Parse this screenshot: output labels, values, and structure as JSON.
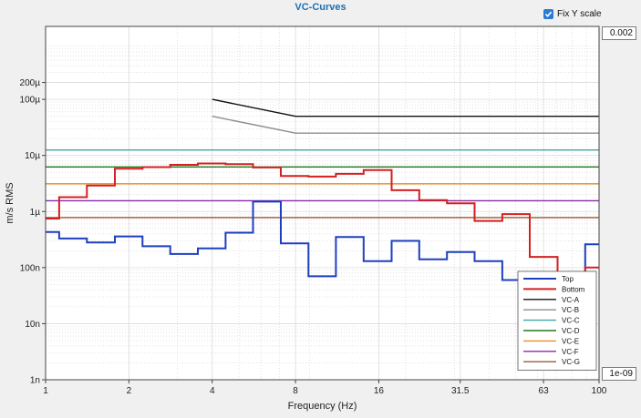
{
  "chart_data": {
    "type": "line",
    "title": "VC-Curves",
    "xlabel": "Frequency (Hz)",
    "ylabel": "m/s RMS",
    "x_scale": "log",
    "y_scale": "log",
    "xlim": [
      1,
      100
    ],
    "ylim": [
      1e-09,
      0.002
    ],
    "x_ticks": [
      1,
      2,
      4,
      8,
      16,
      31.5,
      63,
      100
    ],
    "x_tick_labels": [
      "1",
      "2",
      "4",
      "8",
      "16",
      "31.5",
      "63",
      "100"
    ],
    "y_ticks": [
      1e-09,
      1e-08,
      1e-07,
      1e-06,
      1e-05,
      0.0001,
      0.0002
    ],
    "y_tick_labels": [
      "1n",
      "10n",
      "100n",
      "1µ",
      "10µ",
      "100µ",
      "200µ"
    ],
    "grid": true,
    "legend_position": "bottom-right",
    "series": [
      {
        "name": "Top",
        "color": "#1f3fbf",
        "width": 2,
        "step": true,
        "x": [
          1,
          1.12,
          1.41,
          1.78,
          2.24,
          2.82,
          3.55,
          4.47,
          5.62,
          7.08,
          8.91,
          11.2,
          14.1,
          17.8,
          22.4,
          28.2,
          35.5,
          44.7,
          56.2,
          70.8,
          89.1,
          100
        ],
        "y": [
          4.3e-07,
          3.3e-07,
          2.8e-07,
          3.6e-07,
          2.4e-07,
          1.75e-07,
          2.2e-07,
          4.2e-07,
          1.5e-06,
          2.7e-07,
          7e-08,
          3.5e-07,
          1.3e-07,
          3e-07,
          1.4e-07,
          1.9e-07,
          1.3e-07,
          6e-08,
          3.8e-08,
          1e-08,
          2.6e-07,
          2.6e-07
        ]
      },
      {
        "name": "Bottom",
        "color": "#d42020",
        "width": 2,
        "step": true,
        "x": [
          1,
          1.12,
          1.41,
          1.78,
          2.24,
          2.82,
          3.55,
          4.47,
          5.62,
          7.08,
          8.91,
          11.2,
          14.1,
          17.8,
          22.4,
          28.2,
          35.5,
          44.7,
          56.2,
          70.8,
          89.1,
          100
        ],
        "y": [
          7.5e-07,
          1.8e-06,
          2.9e-06,
          5.8e-06,
          6.2e-06,
          6.8e-06,
          7.2e-06,
          7e-06,
          6.1e-06,
          4.3e-06,
          4.2e-06,
          4.7e-06,
          5.5e-06,
          2.4e-06,
          1.6e-06,
          1.4e-06,
          6.8e-07,
          9e-07,
          1.55e-07,
          5.5e-08,
          1e-07,
          1e-07
        ]
      },
      {
        "name": "VC-A",
        "color": "#111111",
        "width": 1.4,
        "step": false,
        "x": [
          4,
          8,
          100
        ],
        "y": [
          0.0001,
          5e-05,
          5e-05
        ]
      },
      {
        "name": "VC-B",
        "color": "#8c8c8c",
        "width": 1.4,
        "step": false,
        "x": [
          4,
          8,
          100
        ],
        "y": [
          5e-05,
          2.5e-05,
          2.5e-05
        ]
      },
      {
        "name": "VC-C",
        "color": "#3aa8a0",
        "width": 1.4,
        "step": false,
        "x": [
          1,
          100
        ],
        "y": [
          1.25e-05,
          1.25e-05
        ]
      },
      {
        "name": "VC-D",
        "color": "#1e7a1e",
        "width": 1.4,
        "step": false,
        "x": [
          1,
          100
        ],
        "y": [
          6.25e-06,
          6.25e-06
        ]
      },
      {
        "name": "VC-E",
        "color": "#f08c1e",
        "width": 1.4,
        "step": false,
        "x": [
          1,
          100
        ],
        "y": [
          3.12e-06,
          3.12e-06
        ]
      },
      {
        "name": "VC-F",
        "color": "#8a2aa8",
        "width": 1.4,
        "step": false,
        "x": [
          1,
          100
        ],
        "y": [
          1.56e-06,
          1.56e-06
        ]
      },
      {
        "name": "VC-G",
        "color": "#9a5a32",
        "width": 1.4,
        "step": false,
        "x": [
          1,
          100
        ],
        "y": [
          7.8e-07,
          7.8e-07
        ]
      }
    ]
  },
  "controls": {
    "fix_y_label": "Fix Y scale",
    "fix_y_checked": true,
    "y_max_value": "0.002",
    "y_min_value": "1e-09"
  }
}
